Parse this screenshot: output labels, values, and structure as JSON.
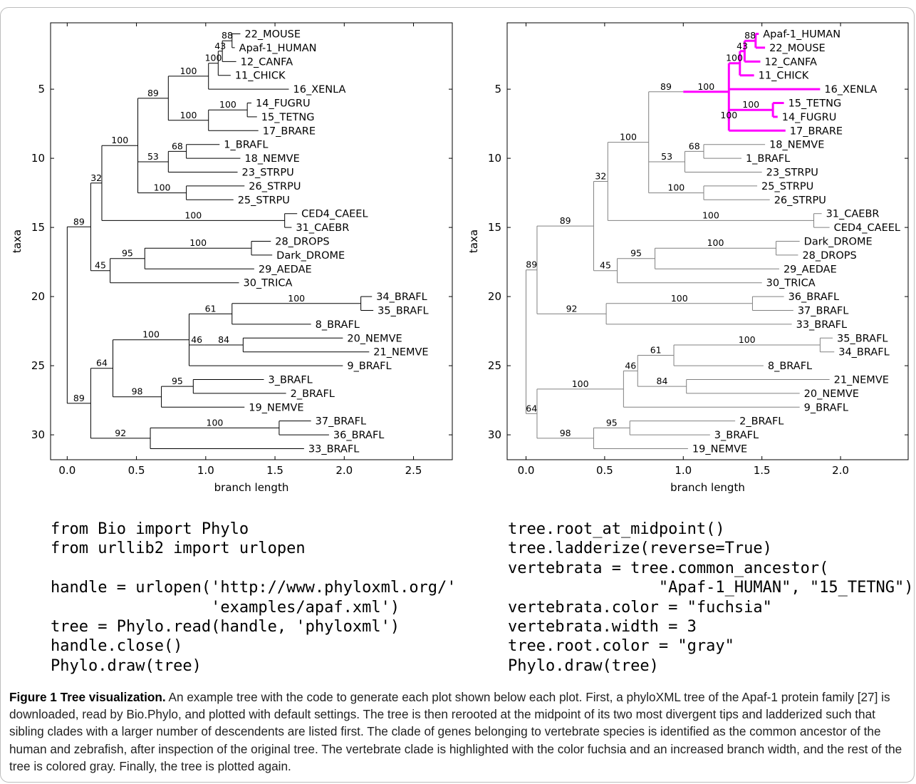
{
  "figure": {
    "label": "Figure 1",
    "title": "Tree visualization.",
    "caption": "An example tree with the code to generate each plot shown below each plot. First, a phyloXML tree of the Apaf-1 protein family [27] is downloaded, read by Bio.Phylo, and plotted with default settings. The tree is then rerooted at the midpoint of its two most divergent tips and ladderized such that sibling clades with a larger number of descendents are listed first. The clade of genes belonging to vertebrate species is identified as the common ancestor of the human and zebrafish, after inspection of the original tree. The vertebrate clade is highlighted with the color fuchsia and an increased branch width, and the rest of the tree is colored gray. Finally, the tree is plotted again."
  },
  "code_left": [
    "from Bio import Phylo",
    "from urllib2 import urlopen",
    "",
    "handle = urlopen('http://www.phyloxml.org/'",
    "                 'examples/apaf.xml')",
    "tree = Phylo.read(handle, 'phyloxml')",
    "handle.close()",
    "Phylo.draw(tree)"
  ],
  "code_right": [
    "tree.root_at_midpoint()",
    "tree.ladderize(reverse=True)",
    "vertebrata = tree.common_ancestor(",
    "                \"Apaf-1_HUMAN\", \"15_TETNG\")",
    "vertebrata.color = \"fuchsia\"",
    "vertebrata.width = 3",
    "tree.root.color = \"gray\"",
    "Phylo.draw(tree)"
  ],
  "chart_data": [
    {
      "type": "tree",
      "xlabel": "branch length",
      "ylabel": "taxa",
      "xlim": [
        -0.12,
        2.78
      ],
      "ylim": [
        31.8,
        0.2
      ],
      "xticks": [
        0.0,
        0.5,
        1.0,
        1.5,
        2.0,
        2.5
      ],
      "xtick_labels": [
        "0.0",
        "0.5",
        "1.0",
        "1.5",
        "2.0",
        "2.5"
      ],
      "yticks": [
        5,
        10,
        15,
        20,
        25,
        30
      ],
      "ytick_labels": [
        "5",
        "10",
        "15",
        "20",
        "25",
        "30"
      ],
      "colors": {
        "branch": "#000000",
        "text": "#000000"
      },
      "nodes": [
        {
          "id": "root",
          "x": 0.0
        },
        {
          "id": "n1",
          "parent": "root",
          "x": 0.17,
          "conf": "89"
        },
        {
          "id": "n2",
          "parent": "n1",
          "x": 0.25,
          "conf": "32"
        },
        {
          "id": "n3",
          "parent": "n2",
          "x": 0.51,
          "conf": "100"
        },
        {
          "id": "n4",
          "parent": "n3",
          "x": 0.73,
          "conf": "89"
        },
        {
          "id": "n5",
          "parent": "n4",
          "x": 1.02,
          "conf": "100"
        },
        {
          "id": "n6",
          "parent": "n5",
          "x": 1.09,
          "conf": "100"
        },
        {
          "id": "n7",
          "parent": "n6",
          "x": 1.12,
          "conf": "43"
        },
        {
          "id": "n8",
          "parent": "n7",
          "x": 1.19,
          "conf": "88"
        },
        {
          "id": "t22m",
          "parent": "n8",
          "x": 1.25,
          "label": "22_MOUSE"
        },
        {
          "id": "thum",
          "parent": "n8",
          "x": 1.21,
          "label": "Apaf-1_HUMAN"
        },
        {
          "id": "t12c",
          "parent": "n7",
          "x": 1.22,
          "label": "12_CANFA"
        },
        {
          "id": "t11c",
          "parent": "n6",
          "x": 1.18,
          "label": "11_CHICK"
        },
        {
          "id": "t16x",
          "parent": "n5",
          "x": 1.6,
          "label": "16_XENLA"
        },
        {
          "id": "n9",
          "parent": "n4",
          "x": 1.02,
          "conf": "100"
        },
        {
          "id": "n10",
          "parent": "n9",
          "x": 1.3,
          "conf": "100"
        },
        {
          "id": "t14f",
          "parent": "n10",
          "x": 1.33,
          "label": "14_FUGRU"
        },
        {
          "id": "t15t",
          "parent": "n10",
          "x": 1.37,
          "label": "15_TETNG"
        },
        {
          "id": "t17b",
          "parent": "n9",
          "x": 1.38,
          "label": "17_BRARE"
        },
        {
          "id": "n11",
          "parent": "n3",
          "x": 0.73,
          "conf": "53"
        },
        {
          "id": "n12",
          "parent": "n11",
          "x": 0.86,
          "conf": "68"
        },
        {
          "id": "t1b",
          "parent": "n12",
          "x": 1.1,
          "label": "1_BRAFL"
        },
        {
          "id": "t18n",
          "parent": "n12",
          "x": 1.25,
          "label": "18_NEMVE"
        },
        {
          "id": "t23s",
          "parent": "n11",
          "x": 1.23,
          "label": "23_STRPU"
        },
        {
          "id": "n13",
          "parent": "n3",
          "x": 0.86,
          "conf": "100"
        },
        {
          "id": "t26s",
          "parent": "n13",
          "x": 1.28,
          "label": "26_STRPU"
        },
        {
          "id": "t25s",
          "parent": "n13",
          "x": 1.2,
          "label": "25_STRPU"
        },
        {
          "id": "n14",
          "parent": "n2",
          "x": 1.57,
          "conf": "100"
        },
        {
          "id": "tced",
          "parent": "n14",
          "x": 1.66,
          "label": "CED4_CAEEL"
        },
        {
          "id": "t31c",
          "parent": "n14",
          "x": 1.62,
          "label": "31_CAEBR"
        },
        {
          "id": "n15",
          "parent": "n1",
          "x": 0.31,
          "conf": "45"
        },
        {
          "id": "n16",
          "parent": "n15",
          "x": 0.56,
          "conf": "95"
        },
        {
          "id": "n17",
          "parent": "n16",
          "x": 1.33,
          "conf": "100"
        },
        {
          "id": "t28d",
          "parent": "n17",
          "x": 1.47,
          "label": "28_DROPS"
        },
        {
          "id": "tdark",
          "parent": "n17",
          "x": 1.48,
          "label": "Dark_DROME"
        },
        {
          "id": "t29a",
          "parent": "n16",
          "x": 1.35,
          "label": "29_AEDAE"
        },
        {
          "id": "t30t",
          "parent": "n15",
          "x": 1.24,
          "label": "30_TRICA"
        },
        {
          "id": "n18",
          "parent": "root",
          "x": 0.17,
          "conf": "89"
        },
        {
          "id": "n19",
          "parent": "n18",
          "x": 0.33,
          "conf": "64"
        },
        {
          "id": "n20",
          "parent": "n19",
          "x": 0.88,
          "conf": "100"
        },
        {
          "id": "n21",
          "parent": "n20",
          "x": 1.19,
          "conf": "61"
        },
        {
          "id": "n22",
          "parent": "n21",
          "x": 2.12,
          "conf": "100"
        },
        {
          "id": "t34b",
          "parent": "n22",
          "x": 2.2,
          "label": "34_BRAFL"
        },
        {
          "id": "t35b",
          "parent": "n22",
          "x": 2.21,
          "label": "35_BRAFL"
        },
        {
          "id": "t8b",
          "parent": "n21",
          "x": 1.76,
          "label": "8_BRAFL"
        },
        {
          "id": "n23",
          "parent": "n20",
          "x": 0.99,
          "conf": "46"
        },
        {
          "id": "n24",
          "parent": "n23",
          "x": 1.27,
          "conf": "84"
        },
        {
          "id": "t20n",
          "parent": "n24",
          "x": 1.99,
          "label": "20_NEMVE"
        },
        {
          "id": "t21n",
          "parent": "n24",
          "x": 2.18,
          "label": "21_NEMVE"
        },
        {
          "id": "t9b",
          "parent": "n20",
          "x": 1.99,
          "label": "9_BRAFL"
        },
        {
          "id": "n25",
          "parent": "n19",
          "x": 0.68,
          "conf": "98"
        },
        {
          "id": "n26",
          "parent": "n25",
          "x": 0.91,
          "conf": "95"
        },
        {
          "id": "t3b",
          "parent": "n26",
          "x": 1.42,
          "label": "3_BRAFL"
        },
        {
          "id": "t2b",
          "parent": "n26",
          "x": 1.58,
          "label": "2_BRAFL"
        },
        {
          "id": "t19n",
          "parent": "n25",
          "x": 1.28,
          "label": "19_NEMVE"
        },
        {
          "id": "n27",
          "parent": "n18",
          "x": 0.6,
          "conf": "92"
        },
        {
          "id": "n28",
          "parent": "n27",
          "x": 1.53,
          "conf": "100"
        },
        {
          "id": "t37b",
          "parent": "n28",
          "x": 1.76,
          "label": "37_BRAFL"
        },
        {
          "id": "t36b",
          "parent": "n28",
          "x": 1.89,
          "label": "36_BRAFL"
        },
        {
          "id": "t33b",
          "parent": "n27",
          "x": 1.71,
          "label": "33_BRAFL"
        }
      ]
    },
    {
      "type": "tree",
      "xlabel": "branch length",
      "ylabel": "taxa",
      "xlim": [
        -0.12,
        2.43
      ],
      "ylim": [
        31.8,
        0.2
      ],
      "xticks": [
        0.0,
        0.5,
        1.0,
        1.5,
        2.0
      ],
      "xtick_labels": [
        "0.0",
        "0.5",
        "1.0",
        "1.5",
        "2.0"
      ],
      "yticks": [
        5,
        10,
        15,
        20,
        25,
        30
      ],
      "ytick_labels": [
        "5",
        "10",
        "15",
        "20",
        "25",
        "30"
      ],
      "colors": {
        "branch": "#808080",
        "highlight": "#ff00ff",
        "text": "#000000"
      },
      "highlight_clade": "v",
      "nodes": [
        {
          "id": "root",
          "x": 0.0
        },
        {
          "id": "m1",
          "parent": "root",
          "x": 0.07,
          "conf": "89"
        },
        {
          "id": "m2",
          "parent": "m1",
          "x": 0.43,
          "conf": "89"
        },
        {
          "id": "m3",
          "parent": "m2",
          "x": 0.52,
          "conf": "32"
        },
        {
          "id": "m4",
          "parent": "m3",
          "x": 0.78,
          "conf": "100"
        },
        {
          "id": "m5",
          "parent": "m4",
          "x": 1.0,
          "conf": "89"
        },
        {
          "id": "v",
          "parent": "m5",
          "x": 1.29,
          "conf": "100"
        },
        {
          "id": "v1",
          "parent": "v",
          "x": 1.36,
          "conf": "100"
        },
        {
          "id": "v2",
          "parent": "v1",
          "x": 1.39,
          "conf": "43"
        },
        {
          "id": "v3",
          "parent": "v2",
          "x": 1.46,
          "conf": "88"
        },
        {
          "id": "hum",
          "parent": "v3",
          "x": 1.48,
          "label": "Apaf-1_HUMAN"
        },
        {
          "id": "mou",
          "parent": "v3",
          "x": 1.52,
          "label": "22_MOUSE"
        },
        {
          "id": "can",
          "parent": "v2",
          "x": 1.49,
          "label": "12_CANFA"
        },
        {
          "id": "chi",
          "parent": "v1",
          "x": 1.45,
          "label": "11_CHICK"
        },
        {
          "id": "xen",
          "parent": "v",
          "x": 1.87,
          "label": "16_XENLA"
        },
        {
          "id": "v4",
          "parent": "v",
          "x": 1.29,
          "conf": "100"
        },
        {
          "id": "v5",
          "parent": "v4",
          "x": 1.57,
          "conf": "100"
        },
        {
          "id": "tet",
          "parent": "v5",
          "x": 1.64,
          "label": "15_TETNG"
        },
        {
          "id": "fug",
          "parent": "v5",
          "x": 1.6,
          "label": "14_FUGRU"
        },
        {
          "id": "bra",
          "parent": "v4",
          "x": 1.65,
          "label": "17_BRARE"
        },
        {
          "id": "m6",
          "parent": "m4",
          "x": 1.01,
          "conf": "53"
        },
        {
          "id": "m7",
          "parent": "m6",
          "x": 1.13,
          "conf": "68"
        },
        {
          "id": "n18b",
          "parent": "m7",
          "x": 1.52,
          "label": "18_NEMVE"
        },
        {
          "id": "b1",
          "parent": "m7",
          "x": 1.37,
          "label": "1_BRAFL"
        },
        {
          "id": "s23",
          "parent": "m6",
          "x": 1.5,
          "label": "23_STRPU"
        },
        {
          "id": "m8",
          "parent": "m4",
          "x": 1.13,
          "conf": "100"
        },
        {
          "id": "s25",
          "parent": "m8",
          "x": 1.47,
          "label": "25_STRPU"
        },
        {
          "id": "s26",
          "parent": "m8",
          "x": 1.55,
          "label": "26_STRPU"
        },
        {
          "id": "m9",
          "parent": "m3",
          "x": 1.83,
          "conf": "100"
        },
        {
          "id": "c31",
          "parent": "m9",
          "x": 1.88,
          "label": "31_CAEBR"
        },
        {
          "id": "ced",
          "parent": "m9",
          "x": 1.93,
          "label": "CED4_CAEEL"
        },
        {
          "id": "m10",
          "parent": "m2",
          "x": 0.58,
          "conf": "45"
        },
        {
          "id": "m11",
          "parent": "m10",
          "x": 0.82,
          "conf": "95"
        },
        {
          "id": "m12",
          "parent": "m11",
          "x": 1.59,
          "conf": "100"
        },
        {
          "id": "dark",
          "parent": "m12",
          "x": 1.74,
          "label": "Dark_DROME"
        },
        {
          "id": "d28",
          "parent": "m12",
          "x": 1.73,
          "label": "28_DROPS"
        },
        {
          "id": "a29",
          "parent": "m11",
          "x": 1.61,
          "label": "29_AEDAE"
        },
        {
          "id": "t30",
          "parent": "m10",
          "x": 1.5,
          "label": "30_TRICA"
        },
        {
          "id": "m13",
          "parent": "m1",
          "x": 0.51,
          "conf": "92"
        },
        {
          "id": "m14",
          "parent": "m13",
          "x": 1.44,
          "conf": "100"
        },
        {
          "id": "b36",
          "parent": "m14",
          "x": 1.64,
          "label": "36_BRAFL"
        },
        {
          "id": "b37",
          "parent": "m14",
          "x": 1.7,
          "label": "37_BRAFL"
        },
        {
          "id": "b33",
          "parent": "m13",
          "x": 1.69,
          "label": "33_BRAFL"
        },
        {
          "id": "m15",
          "parent": "root",
          "x": 0.07,
          "conf": "64"
        },
        {
          "id": "m16",
          "parent": "m15",
          "x": 0.62,
          "conf": "100"
        },
        {
          "id": "m17",
          "parent": "m16",
          "x": 0.71,
          "conf": "46"
        },
        {
          "id": "m18",
          "parent": "m17",
          "x": 0.94,
          "conf": "61"
        },
        {
          "id": "m19",
          "parent": "m18",
          "x": 1.87,
          "conf": "100"
        },
        {
          "id": "b35",
          "parent": "m19",
          "x": 1.95,
          "label": "35_BRAFL"
        },
        {
          "id": "b34",
          "parent": "m19",
          "x": 1.96,
          "label": "34_BRAFL"
        },
        {
          "id": "b8",
          "parent": "m18",
          "x": 1.51,
          "label": "8_BRAFL"
        },
        {
          "id": "m20",
          "parent": "m17",
          "x": 1.02,
          "conf": "84"
        },
        {
          "id": "n21b",
          "parent": "m20",
          "x": 1.93,
          "label": "21_NEMVE"
        },
        {
          "id": "n20b",
          "parent": "m20",
          "x": 1.74,
          "label": "20_NEMVE"
        },
        {
          "id": "b9",
          "parent": "m16",
          "x": 1.74,
          "label": "9_BRAFL"
        },
        {
          "id": "m21",
          "parent": "m15",
          "x": 0.43,
          "conf": "98"
        },
        {
          "id": "m22",
          "parent": "m21",
          "x": 0.66,
          "conf": "95"
        },
        {
          "id": "b2",
          "parent": "m22",
          "x": 1.33,
          "label": "2_BRAFL"
        },
        {
          "id": "b3",
          "parent": "m22",
          "x": 1.17,
          "label": "3_BRAFL"
        },
        {
          "id": "n19b",
          "parent": "m21",
          "x": 1.03,
          "label": "19_NEMVE"
        }
      ]
    }
  ]
}
